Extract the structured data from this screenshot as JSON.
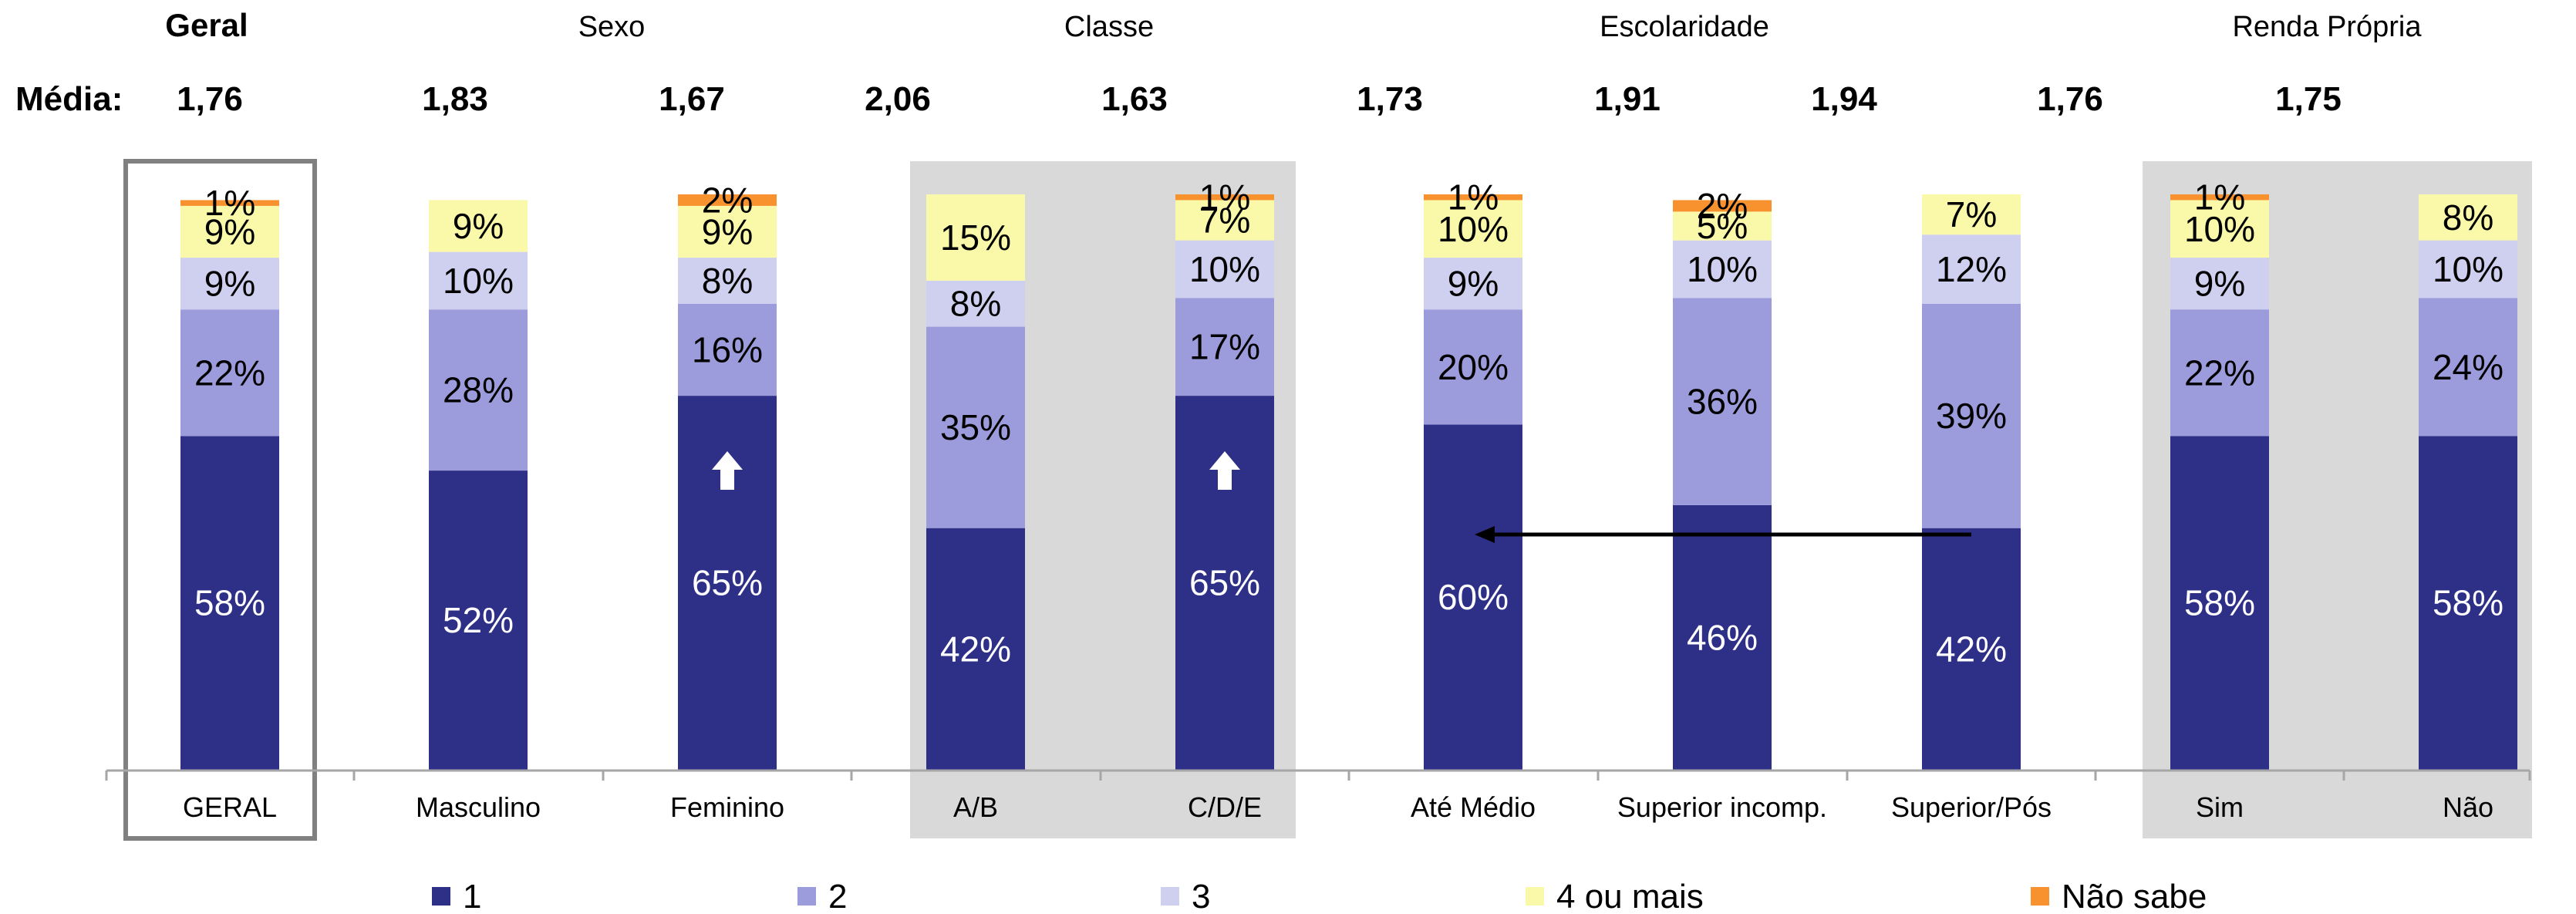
{
  "group_headers": {
    "geral": "Geral",
    "sexo": "Sexo",
    "classe": "Classe",
    "escolaridade": "Escolaridade",
    "renda": "Renda Própria"
  },
  "media_label": "Média:",
  "media_values": [
    "1,76",
    "1,83",
    "1,67",
    "2,06",
    "1,63",
    "1,73",
    "1,91",
    "1,94",
    "1,76",
    "1,75"
  ],
  "colors": {
    "s1": "#2E3088",
    "s2": "#9C9CDC",
    "s3": "#CFCFEF",
    "s4": "#FAF9A9",
    "s5": "#F7922F",
    "panel": "#D9D9D9",
    "frame": "#808080"
  },
  "chart_data": {
    "type": "bar",
    "stacked": true,
    "categories": [
      "GERAL",
      "Masculino",
      "Feminino",
      "A/B",
      "C/D/E",
      "Até Médio",
      "Superior incomp.",
      "Superior/Pós",
      "Sim",
      "Não"
    ],
    "series": [
      {
        "name": "1",
        "values": [
          58,
          52,
          65,
          42,
          65,
          60,
          46,
          42,
          58,
          58
        ],
        "labels": [
          "58%",
          "52%",
          "65%",
          "42%",
          "65%",
          "60%",
          "46%",
          "42%",
          "58%",
          "58%"
        ]
      },
      {
        "name": "2",
        "values": [
          22,
          28,
          16,
          35,
          17,
          20,
          36,
          39,
          22,
          24
        ],
        "labels": [
          "22%",
          "28%",
          "16%",
          "35%",
          "17%",
          "20%",
          "36%",
          "39%",
          "22%",
          "24%"
        ]
      },
      {
        "name": "3",
        "values": [
          9,
          10,
          8,
          8,
          10,
          9,
          10,
          12,
          9,
          10
        ],
        "labels": [
          "9%",
          "10%",
          "8%",
          "8%",
          "10%",
          "9%",
          "10%",
          "12%",
          "9%",
          "10%"
        ]
      },
      {
        "name": "4 ou mais",
        "values": [
          9,
          9,
          9,
          15,
          7,
          10,
          5,
          7,
          10,
          8
        ],
        "labels": [
          "9%",
          "9%",
          "9%",
          "15%",
          "7%",
          "10%",
          "5%",
          "7%",
          "10%",
          "8%"
        ]
      },
      {
        "name": "Não sabe",
        "values": [
          1,
          0,
          2,
          0,
          1,
          1,
          2,
          0,
          1,
          0
        ],
        "labels": [
          "1%",
          "",
          "2%",
          "",
          "1%",
          "1%",
          "2%",
          "",
          "1%",
          ""
        ]
      }
    ],
    "legend_position": "bottom",
    "significance_up_arrows": [
      "Feminino",
      "C/D/E"
    ],
    "comparison_arrow": {
      "from": "Superior/Pós",
      "to": "Até Médio"
    }
  }
}
